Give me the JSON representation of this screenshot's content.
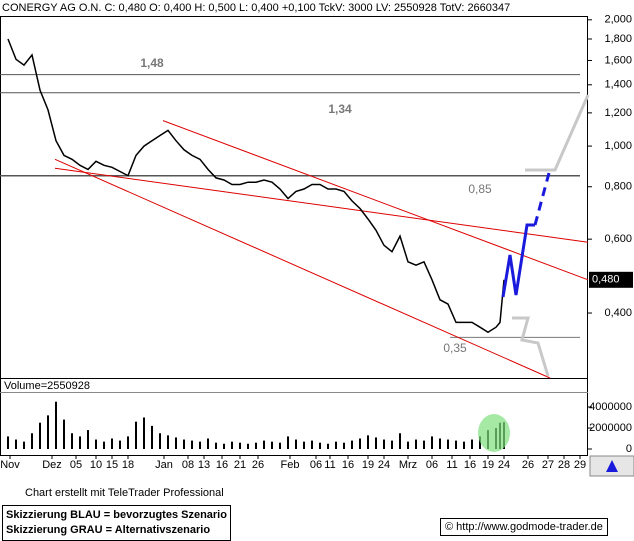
{
  "chart_data": [
    {
      "type": "line",
      "title": "CONERGY AG O.N. C: 0,480 O: 0,400 H: 0,500 L: 0,400 +0,100 TckV: 3000 LV: 2550928 TotV: 2660347",
      "log_scale": true,
      "ylim": [
        0.28,
        2.02
      ],
      "xlim": [
        0,
        147
      ],
      "yticks": [
        {
          "value": 0.4,
          "label": "0,400"
        },
        {
          "value": 0.6,
          "label": "0,600"
        },
        {
          "value": 0.8,
          "label": "0,800"
        },
        {
          "value": 1.0,
          "label": "1,000"
        },
        {
          "value": 1.2,
          "label": "1,200"
        },
        {
          "value": 1.4,
          "label": "1,400"
        },
        {
          "value": 1.6,
          "label": "1,600"
        },
        {
          "value": 1.8,
          "label": "1,800"
        },
        {
          "value": 2.0,
          "label": "2,000"
        }
      ],
      "last_value": {
        "value": 0.48,
        "label": "0,480"
      },
      "series": [
        {
          "color": "#000000",
          "x": [
            2,
            4,
            6,
            8,
            10,
            12,
            14,
            16,
            18,
            20,
            22,
            24,
            26,
            28,
            30,
            32,
            34,
            36,
            38,
            40,
            42,
            44,
            46,
            48,
            50,
            52,
            54,
            56,
            58,
            60,
            62,
            64,
            66,
            68,
            70,
            72,
            74,
            76,
            78,
            80,
            82,
            84,
            86,
            88,
            90,
            92,
            94,
            96,
            98,
            100,
            102,
            104,
            106,
            108,
            110,
            112,
            114,
            116,
            118,
            120,
            122,
            124,
            125,
            126
          ],
          "values": [
            1.8,
            1.61,
            1.56,
            1.65,
            1.36,
            1.22,
            1.03,
            0.95,
            0.93,
            0.9,
            0.88,
            0.92,
            0.9,
            0.89,
            0.87,
            0.85,
            0.95,
            1.0,
            1.03,
            1.06,
            1.09,
            1.03,
            0.98,
            0.95,
            0.93,
            0.88,
            0.84,
            0.83,
            0.81,
            0.81,
            0.82,
            0.82,
            0.83,
            0.82,
            0.79,
            0.75,
            0.78,
            0.79,
            0.81,
            0.81,
            0.79,
            0.79,
            0.78,
            0.74,
            0.71,
            0.67,
            0.63,
            0.58,
            0.56,
            0.61,
            0.53,
            0.52,
            0.53,
            0.48,
            0.43,
            0.42,
            0.38,
            0.38,
            0.38,
            0.37,
            0.36,
            0.37,
            0.38,
            0.48
          ]
        }
      ],
      "levels": [
        {
          "value": 1.48,
          "label": "1,48"
        },
        {
          "value": 1.34,
          "label": "1,34"
        },
        {
          "value": 0.85,
          "label": "0,85"
        },
        {
          "value": 0.35,
          "label": "0,35"
        }
      ],
      "trendlines": [
        {
          "color": "#dd0000",
          "x": [
            40.75,
            147
          ],
          "values": [
            1.15,
            0.48
          ]
        },
        {
          "color": "#dd0000",
          "x": [
            13.75,
            137.5
          ],
          "values": [
            0.93,
            0.28
          ]
        },
        {
          "color": "#dd0000",
          "x": [
            13.75,
            147
          ],
          "values": [
            0.885,
            0.59
          ]
        }
      ]
    },
    {
      "type": "bar",
      "title": "Volume=2550928",
      "ylim": [
        0,
        5330000
      ],
      "xlim": [
        0,
        147
      ],
      "yticks": [
        0,
        2000000,
        4000000
      ],
      "xticks": [
        {
          "value": 2.5,
          "label": "Nov"
        },
        {
          "value": 13,
          "label": "Dez"
        },
        {
          "value": 19,
          "label": "05"
        },
        {
          "value": 24,
          "label": "10"
        },
        {
          "value": 28,
          "label": "15"
        },
        {
          "value": 32,
          "label": "18"
        },
        {
          "value": 41,
          "label": "Jan"
        },
        {
          "value": 47,
          "label": "08"
        },
        {
          "value": 51,
          "label": "13"
        },
        {
          "value": 55.5,
          "label": "16"
        },
        {
          "value": 60,
          "label": "21"
        },
        {
          "value": 64.5,
          "label": "26"
        },
        {
          "value": 72.5,
          "label": "Feb"
        },
        {
          "value": 79,
          "label": "06"
        },
        {
          "value": 82.5,
          "label": "11"
        },
        {
          "value": 87,
          "label": "16"
        },
        {
          "value": 92,
          "label": "19"
        },
        {
          "value": 96,
          "label": "24"
        },
        {
          "value": 102,
          "label": "Mrz"
        },
        {
          "value": 108,
          "label": "06"
        },
        {
          "value": 113,
          "label": "11"
        },
        {
          "value": 117.5,
          "label": "16"
        },
        {
          "value": 122,
          "label": "19"
        },
        {
          "value": 126,
          "label": "24"
        },
        {
          "value": 132,
          "label": "26"
        },
        {
          "value": 137,
          "label": "27"
        },
        {
          "value": 141,
          "label": "28"
        },
        {
          "value": 145,
          "label": "29"
        }
      ],
      "color": "#000000",
      "x": [
        2,
        4,
        6,
        8,
        10,
        12,
        14,
        16,
        18,
        20,
        22,
        24,
        26,
        28,
        30,
        32,
        34,
        36,
        38,
        40,
        42,
        44,
        46,
        48,
        50,
        52,
        54,
        56,
        58,
        60,
        62,
        64,
        66,
        68,
        70,
        72,
        74,
        76,
        78,
        80,
        82,
        84,
        86,
        88,
        90,
        92,
        94,
        96,
        98,
        100,
        102,
        104,
        106,
        108,
        110,
        112,
        114,
        116,
        118,
        120,
        122,
        124,
        125,
        126
      ],
      "values": [
        1200000,
        900000,
        700000,
        1500000,
        2500000,
        3200000,
        4500000,
        2800000,
        1500000,
        1200000,
        1800000,
        900000,
        700000,
        1000000,
        800000,
        1200000,
        2600000,
        3000000,
        2200000,
        1500000,
        1300000,
        1100000,
        900000,
        800000,
        700000,
        1000000,
        600000,
        500000,
        700000,
        600000,
        500000,
        600000,
        800000,
        700000,
        600000,
        1200000,
        900000,
        700000,
        800000,
        600000,
        500000,
        700000,
        600000,
        800000,
        1000000,
        1300000,
        1100000,
        900000,
        800000,
        1500000,
        700000,
        900000,
        800000,
        1200000,
        1000000,
        900000,
        800000,
        700000,
        900000,
        1200000,
        1800000,
        2000000,
        2500000,
        2550928
      ]
    }
  ],
  "footer": {
    "credit": "Chart erstellt mit TeleTrader Professional",
    "legend": [
      "Skizzierung BLAU = bevorzugtes Szenario",
      "Skizzierung GRAU = Alternativszenario"
    ],
    "source": "© http://www.godmode-trader.de"
  }
}
